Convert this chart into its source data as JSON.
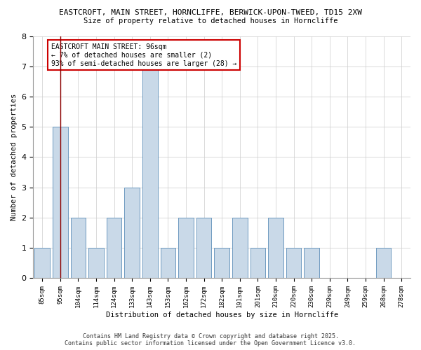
{
  "title1": "EASTCROFT, MAIN STREET, HORNCLIFFE, BERWICK-UPON-TWEED, TD15 2XW",
  "title2": "Size of property relative to detached houses in Horncliffe",
  "xlabel": "Distribution of detached houses by size in Horncliffe",
  "ylabel": "Number of detached properties",
  "categories": [
    "85sqm",
    "95sqm",
    "104sqm",
    "114sqm",
    "124sqm",
    "133sqm",
    "143sqm",
    "153sqm",
    "162sqm",
    "172sqm",
    "182sqm",
    "191sqm",
    "201sqm",
    "210sqm",
    "220sqm",
    "230sqm",
    "239sqm",
    "249sqm",
    "259sqm",
    "268sqm",
    "278sqm"
  ],
  "values": [
    1,
    5,
    2,
    1,
    2,
    3,
    7,
    1,
    2,
    2,
    1,
    2,
    1,
    2,
    1,
    1,
    0,
    0,
    0,
    1,
    0
  ],
  "bar_color": "#c9d9e8",
  "bar_edge_color": "#5b8db8",
  "highlight_index": 1,
  "highlight_line_color": "#8b0000",
  "annotation_title": "EASTCROFT MAIN STREET: 96sqm",
  "annotation_line1": "← 7% of detached houses are smaller (2)",
  "annotation_line2": "93% of semi-detached houses are larger (28) →",
  "annotation_box_color": "#ffffff",
  "annotation_border_color": "#cc0000",
  "ylim": [
    0,
    8
  ],
  "yticks": [
    0,
    1,
    2,
    3,
    4,
    5,
    6,
    7,
    8
  ],
  "footer1": "Contains HM Land Registry data © Crown copyright and database right 2025.",
  "footer2": "Contains public sector information licensed under the Open Government Licence v3.0."
}
